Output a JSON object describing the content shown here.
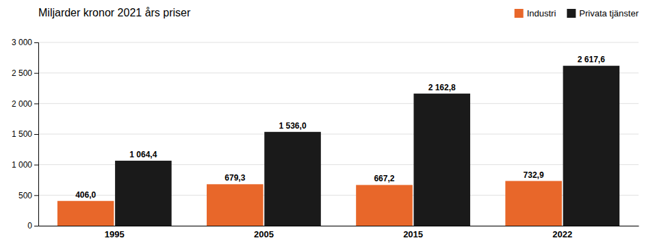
{
  "chart_data": {
    "type": "bar",
    "title": "Miljarder kronor 2021 års priser",
    "categories": [
      "1995",
      "2005",
      "2015",
      "2022"
    ],
    "series": [
      {
        "name": "Industri",
        "color": "#E8672A",
        "values": [
          406.0,
          679.3,
          667.2,
          732.9
        ],
        "value_labels": [
          "406,0",
          "679,3",
          "667,2",
          "732,9"
        ]
      },
      {
        "name": "Privata tjänster",
        "color": "#1A1A1A",
        "values": [
          1064.4,
          1536.0,
          2162.8,
          2617.6
        ],
        "value_labels": [
          "1 064,4",
          "1 536,0",
          "2 162,8",
          "2 617,6"
        ]
      }
    ],
    "ylim": [
      0,
      3000
    ],
    "yticks": [
      0,
      500,
      {
        "value": 1000,
        "label": "1 000"
      },
      {
        "value": 1500,
        "label": "1 500"
      },
      {
        "value": 2000,
        "label": "2 000"
      },
      {
        "value": 2500,
        "label": "2 500"
      },
      {
        "value": 3000,
        "label": "3 000"
      }
    ],
    "grid": true,
    "legend": "upper right",
    "data_labels": true
  }
}
